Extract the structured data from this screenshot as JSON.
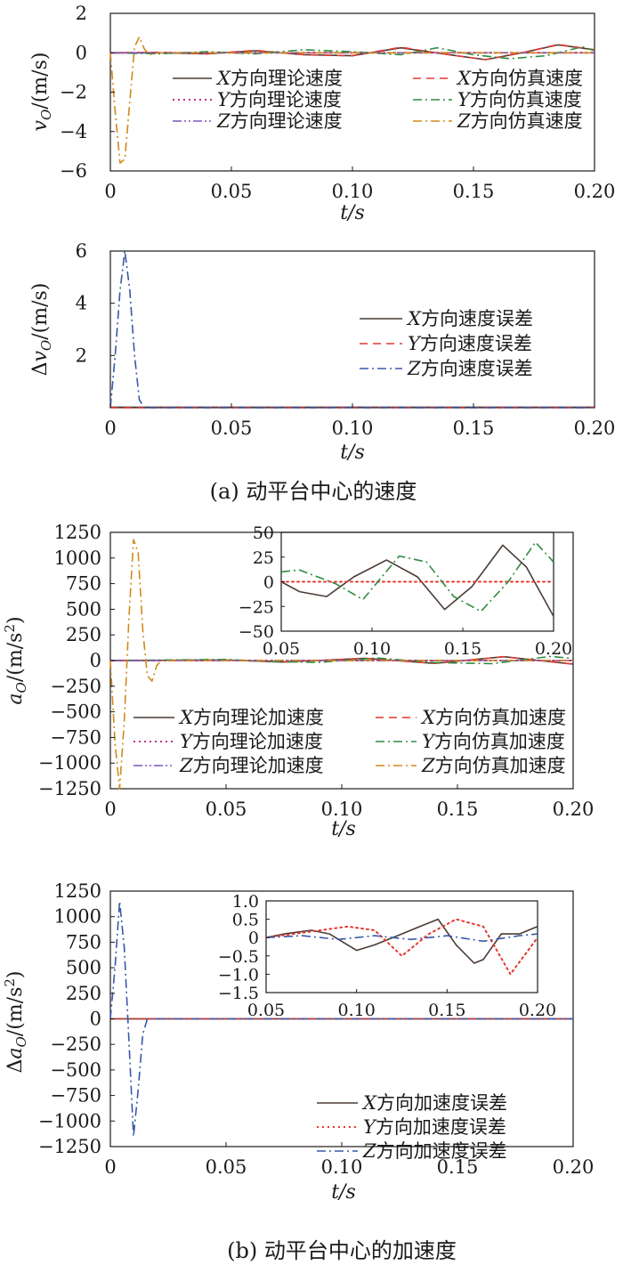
{
  "captions": {
    "a": "(a) 动平台中心的速度",
    "b": "(b) 动平台中心的加速度"
  },
  "colors": {
    "x_theory": "#4a3b36",
    "x_sim": "#e3392f",
    "y_theory": "#c42e88",
    "y_sim": "#2f8c3f",
    "z_theory": "#7a55b5",
    "z_sim": "#d08a1a",
    "err_x": "#4a3b36",
    "err_y": "#e3392f",
    "err_z": "#3858a6"
  },
  "chart_data": [
    {
      "id": "v",
      "type": "line",
      "xlabel": "t/s",
      "ylabel": "v_O/(m/s)",
      "xlim": [
        0,
        0.2
      ],
      "ylim": [
        -6,
        2
      ],
      "xticks": [
        "0",
        "0.05",
        "0.10",
        "0.15",
        "0.20"
      ],
      "yticks": [
        "2",
        "0",
        "−2",
        "−4",
        "−6"
      ],
      "legend_position": "center",
      "series": [
        {
          "name": "X方向理论速度",
          "style": "solid",
          "colorKey": "x_theory",
          "x": [
            0,
            0.02,
            0.04,
            0.06,
            0.08,
            0.1,
            0.12,
            0.14,
            0.155,
            0.17,
            0.185,
            0.2
          ],
          "y": [
            0,
            0,
            -0.05,
            0.1,
            -0.1,
            -0.15,
            0.25,
            -0.1,
            -0.35,
            0,
            0.4,
            0.15
          ]
        },
        {
          "name": "X方向仿真速度",
          "style": "dash",
          "colorKey": "x_sim",
          "x": [
            0,
            0.02,
            0.04,
            0.06,
            0.08,
            0.1,
            0.12,
            0.14,
            0.155,
            0.17,
            0.185,
            0.2
          ],
          "y": [
            0,
            0.02,
            -0.05,
            0.12,
            -0.1,
            -0.15,
            0.28,
            -0.1,
            -0.35,
            0,
            0.42,
            0.15
          ]
        },
        {
          "name": "Y方向理论速度",
          "style": "dot",
          "colorKey": "y_theory",
          "x": [
            0,
            0.05,
            0.1,
            0.15,
            0.2
          ],
          "y": [
            0,
            0,
            0,
            0,
            0
          ]
        },
        {
          "name": "Y方向仿真速度",
          "style": "dashdot",
          "colorKey": "y_sim",
          "x": [
            0,
            0.02,
            0.04,
            0.06,
            0.08,
            0.1,
            0.12,
            0.135,
            0.15,
            0.165,
            0.18,
            0.195,
            0.2
          ],
          "y": [
            0,
            -0.05,
            0.05,
            -0.05,
            0.15,
            0.05,
            -0.1,
            0.25,
            -0.1,
            -0.3,
            -0.15,
            0.3,
            0.1
          ]
        },
        {
          "name": "Z方向理论速度",
          "style": "dashdotdot",
          "colorKey": "z_theory",
          "x": [
            0,
            0.05,
            0.1,
            0.15,
            0.2
          ],
          "y": [
            0,
            0,
            0,
            0,
            0
          ]
        },
        {
          "name": "Z方向仿真速度",
          "style": "dashdot",
          "colorKey": "z_sim",
          "x": [
            0,
            0.002,
            0.004,
            0.006,
            0.008,
            0.01,
            0.012,
            0.014,
            0.016,
            0.02,
            0.2
          ],
          "y": [
            0,
            -3,
            -5.6,
            -5.4,
            -2.5,
            0.3,
            0.8,
            0.2,
            -0.1,
            0,
            0
          ]
        }
      ]
    },
    {
      "id": "dv",
      "type": "line",
      "xlabel": "t/s",
      "ylabel": "Δv_O/(m/s)",
      "xlim": [
        0,
        0.2
      ],
      "ylim": [
        0,
        6
      ],
      "xticks": [
        "0",
        "0.05",
        "0.10",
        "0.15",
        "0.20"
      ],
      "yticks": [
        "6",
        "4",
        "2"
      ],
      "legend_position": "right",
      "series": [
        {
          "name": "X方向速度误差",
          "style": "solid",
          "colorKey": "err_x",
          "x": [
            0,
            0.2
          ],
          "y": [
            0.02,
            0.02
          ]
        },
        {
          "name": "Y方向速度误差",
          "style": "dash",
          "colorKey": "err_y",
          "x": [
            0,
            0.2
          ],
          "y": [
            0,
            0
          ]
        },
        {
          "name": "Z方向速度误差",
          "style": "dashdot",
          "colorKey": "err_z",
          "x": [
            0,
            0.002,
            0.004,
            0.006,
            0.008,
            0.01,
            0.012,
            0.014,
            0.2
          ],
          "y": [
            0,
            2,
            4.5,
            6,
            4.5,
            2,
            0.3,
            0,
            0
          ]
        }
      ]
    },
    {
      "id": "a",
      "type": "line",
      "xlabel": "t/s",
      "ylabel": "a_O/(m/s^2)",
      "xlim": [
        0,
        0.2
      ],
      "ylim": [
        -1250,
        1250
      ],
      "xticks": [
        "0",
        "0.05",
        "0.10",
        "0.15",
        "0.20"
      ],
      "yticks": [
        "1250",
        "1000",
        "750",
        "500",
        "250",
        "0",
        "−250",
        "−500",
        "−750",
        "−1000",
        "−1250"
      ],
      "legend_position": "bottom",
      "series": [
        {
          "name": "X方向理论加速度",
          "style": "solid",
          "colorKey": "x_theory",
          "x": [
            0,
            0.05,
            0.075,
            0.11,
            0.14,
            0.17,
            0.2
          ],
          "y": [
            0,
            5,
            -15,
            22,
            -28,
            37,
            -35
          ]
        },
        {
          "name": "X方向仿真加速度",
          "style": "dash",
          "colorKey": "x_sim",
          "x": [
            0,
            0.05,
            0.075,
            0.11,
            0.14,
            0.17,
            0.2
          ],
          "y": [
            0,
            5,
            -15,
            22,
            -28,
            37,
            -35
          ]
        },
        {
          "name": "Y方向理论加速度",
          "style": "dot",
          "colorKey": "y_theory",
          "x": [
            0,
            0.2
          ],
          "y": [
            0,
            0
          ]
        },
        {
          "name": "Y方向仿真加速度",
          "style": "dashdot",
          "colorKey": "y_sim",
          "x": [
            0,
            0.05,
            0.07,
            0.09,
            0.115,
            0.14,
            0.165,
            0.19,
            0.2
          ],
          "y": [
            0,
            10,
            -10,
            -18,
            25,
            -20,
            -30,
            40,
            20
          ]
        },
        {
          "name": "Z方向理论加速度",
          "style": "dashdotdot",
          "colorKey": "z_theory",
          "x": [
            0,
            0.2
          ],
          "y": [
            0,
            0
          ]
        },
        {
          "name": "Z方向仿真加速度",
          "style": "dashdot",
          "colorKey": "z_sim",
          "x": [
            0,
            0.002,
            0.004,
            0.006,
            0.008,
            0.01,
            0.012,
            0.014,
            0.016,
            0.018,
            0.02,
            0.022,
            0.2
          ],
          "y": [
            0,
            -800,
            -1250,
            -600,
            400,
            1180,
            1050,
            300,
            -150,
            -200,
            -50,
            0,
            0
          ]
        }
      ]
    },
    {
      "id": "a_inset",
      "type": "line",
      "xlim": [
        0.05,
        0.2
      ],
      "ylim": [
        -50,
        50
      ],
      "xticks": [
        "0.05",
        "0.10",
        "0.15",
        "0.20"
      ],
      "yticks": [
        "50",
        "25",
        "0",
        "−25",
        "−50"
      ],
      "series": [
        {
          "name": "X方向理论加速度",
          "style": "solid",
          "colorKey": "x_theory",
          "x": [
            0.05,
            0.06,
            0.075,
            0.09,
            0.108,
            0.125,
            0.14,
            0.155,
            0.172,
            0.185,
            0.2
          ],
          "y": [
            0,
            -10,
            -15,
            5,
            22,
            5,
            -28,
            -5,
            37,
            15,
            -35
          ]
        },
        {
          "name": "Y方向理论加速度",
          "style": "dot",
          "colorKey": "x_sim",
          "x": [
            0.05,
            0.2
          ],
          "y": [
            0,
            0
          ]
        },
        {
          "name": "Y方向仿真加速度",
          "style": "dashdot",
          "colorKey": "y_sim",
          "x": [
            0.05,
            0.06,
            0.08,
            0.095,
            0.115,
            0.13,
            0.145,
            0.16,
            0.175,
            0.19,
            0.2
          ],
          "y": [
            10,
            12,
            -2,
            -18,
            26,
            20,
            -15,
            -30,
            0,
            40,
            20
          ]
        }
      ]
    },
    {
      "id": "da",
      "type": "line",
      "xlabel": "t/s",
      "ylabel": "Δa_O/(m/s^2)",
      "xlim": [
        0,
        0.2
      ],
      "ylim": [
        -1250,
        1250
      ],
      "xticks": [
        "0",
        "0.05",
        "0.10",
        "0.15",
        "0.20"
      ],
      "yticks": [
        "1250",
        "1000",
        "750",
        "500",
        "250",
        "0",
        "−250",
        "−500",
        "−750",
        "−1000",
        "−1250"
      ],
      "legend_position": "bottom-right",
      "series": [
        {
          "name": "X方向加速度误差",
          "style": "solid",
          "colorKey": "err_x",
          "x": [
            0,
            0.2
          ],
          "y": [
            0,
            0
          ]
        },
        {
          "name": "Y方向加速度误差",
          "style": "dot",
          "colorKey": "err_y",
          "x": [
            0,
            0.2
          ],
          "y": [
            0,
            0
          ]
        },
        {
          "name": "Z方向加速度误差",
          "style": "dashdot",
          "colorKey": "err_z",
          "x": [
            0,
            0.002,
            0.004,
            0.006,
            0.008,
            0.01,
            0.012,
            0.014,
            0.016,
            0.2
          ],
          "y": [
            0,
            500,
            1150,
            700,
            -200,
            -1150,
            -700,
            -150,
            0,
            0
          ]
        }
      ]
    },
    {
      "id": "da_inset",
      "type": "line",
      "xlim": [
        0.05,
        0.2
      ],
      "ylim": [
        -1.5,
        1.0
      ],
      "xticks": [
        "0.05",
        "0.10",
        "0.15",
        "0.20"
      ],
      "yticks": [
        "1.0",
        "0.5",
        "0",
        "−0.5",
        "−1.0",
        "−1.5"
      ],
      "series": [
        {
          "name": "X方向加速度误差",
          "style": "solid",
          "colorKey": "err_x",
          "x": [
            0.05,
            0.06,
            0.075,
            0.085,
            0.1,
            0.11,
            0.125,
            0.135,
            0.145,
            0.155,
            0.165,
            0.17,
            0.18,
            0.19,
            0.2
          ],
          "y": [
            0,
            0.1,
            0.2,
            0.1,
            -0.35,
            -0.2,
            0.1,
            0.3,
            0.5,
            -0.2,
            -0.7,
            -0.6,
            0.1,
            0.1,
            0.3
          ]
        },
        {
          "name": "Y方向加速度误差",
          "style": "dot",
          "colorKey": "err_y",
          "x": [
            0.05,
            0.065,
            0.08,
            0.095,
            0.11,
            0.125,
            0.14,
            0.155,
            0.17,
            0.185,
            0.2
          ],
          "y": [
            0,
            0.1,
            0.2,
            0.3,
            0.2,
            -0.5,
            0.1,
            0.5,
            0.3,
            -1.0,
            0
          ]
        },
        {
          "name": "Z方向加速度误差",
          "style": "dashdot",
          "colorKey": "err_z",
          "x": [
            0.05,
            0.07,
            0.09,
            0.11,
            0.13,
            0.15,
            0.17,
            0.19,
            0.2
          ],
          "y": [
            0,
            0.05,
            -0.05,
            0.05,
            -0.05,
            0.05,
            -0.1,
            0.05,
            0.1
          ]
        }
      ]
    }
  ]
}
